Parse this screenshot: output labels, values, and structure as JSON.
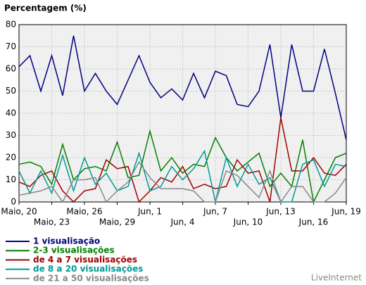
{
  "chart_data": {
    "type": "line",
    "title": "Percentagem (%)",
    "watermark": "LiveInternet",
    "categories": [
      "Maio, 20",
      null,
      null,
      "Maio, 23",
      null,
      null,
      "Maio, 26",
      null,
      null,
      "Maio, 29",
      null,
      null,
      "Jun, 1",
      null,
      null,
      "Jun, 4",
      null,
      null,
      "Jun, 7",
      null,
      null,
      "Jun, 10",
      null,
      null,
      "Jun, 13",
      null,
      null,
      "Jun, 16",
      null,
      null,
      "Jun, 19"
    ],
    "series": [
      {
        "name": "1 visualisação",
        "color": "#000080",
        "values": [
          61,
          66,
          50,
          66,
          48,
          75,
          50,
          58,
          50,
          44,
          55,
          66,
          54,
          47,
          51,
          46,
          58,
          47,
          59,
          57,
          44,
          43,
          50,
          71,
          38,
          71,
          50,
          50,
          69,
          49,
          28
        ]
      },
      {
        "name": "2-3 visualisações",
        "color": "#008000",
        "values": [
          17,
          18,
          16,
          8,
          26,
          10,
          15,
          16,
          14,
          27,
          11,
          12,
          32,
          14,
          20,
          13,
          17,
          16,
          29,
          20,
          14,
          18,
          22,
          7,
          13,
          7,
          28,
          0,
          10,
          20,
          22
        ]
      },
      {
        "name": "de 4 a 7 visualisações",
        "color": "#a00000",
        "values": [
          9,
          7,
          12,
          14,
          5,
          0,
          5,
          6,
          19,
          15,
          16,
          0,
          5,
          11,
          9,
          16,
          6,
          8,
          6,
          7,
          19,
          13,
          14,
          0,
          38,
          14,
          14,
          20,
          13,
          12,
          17
        ]
      },
      {
        "name": "de 8 a 20 visualisações",
        "color": "#009999",
        "values": [
          14,
          4,
          14,
          4,
          21,
          5,
          20,
          8,
          13,
          5,
          7,
          22,
          5,
          7,
          16,
          10,
          15,
          23,
          0,
          20,
          7,
          17,
          8,
          11,
          0,
          0,
          17,
          19,
          7,
          17,
          16
        ]
      },
      {
        "name": "de 21 a 50 visualisações",
        "color": "#888888",
        "values": [
          3,
          4,
          5,
          7,
          0,
          10,
          10,
          11,
          0,
          5,
          9,
          18,
          11,
          6,
          6,
          6,
          5,
          0,
          0,
          14,
          12,
          7,
          2,
          14,
          0,
          7,
          7,
          0,
          0,
          4,
          11
        ]
      }
    ],
    "ylim": [
      0,
      80
    ],
    "yticks": [
      0,
      10,
      20,
      30,
      40,
      50,
      60,
      70,
      80
    ],
    "grid": true
  }
}
